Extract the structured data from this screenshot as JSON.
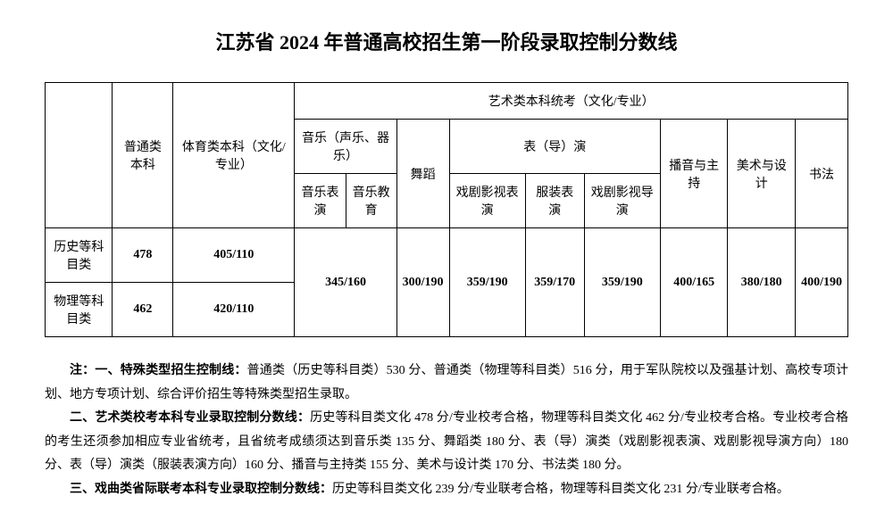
{
  "doc": {
    "title": "江苏省 2024 年普通高校招生第一阶段录取控制分数线",
    "title_fontsize": 22,
    "body_fontsize": 14,
    "notes_fontsize": 14,
    "background_color": "#ffffff",
    "text_color": "#000000",
    "border_color": "#000000"
  },
  "table": {
    "type": "table",
    "headers": {
      "col_category": "",
      "col_general": "普通类本科",
      "col_sports": "体育类本科（文化/专业）",
      "col_art_group": "艺术类本科统考（文化/专业）",
      "col_music_group": "音乐（声乐、器乐）",
      "col_music_perf": "音乐表演",
      "col_music_edu": "音乐教育",
      "col_dance": "舞蹈",
      "col_acting_group": "表（导）演",
      "col_drama_tv_act": "戏剧影视表演",
      "col_fashion_perf": "服装表演",
      "col_drama_tv_dir": "戏剧影视导演",
      "col_broadcast": "播音与主持",
      "col_fine_art": "美术与设计",
      "col_calligraphy": "书法"
    },
    "rows": [
      {
        "category": "历史等科目类",
        "general": "478",
        "sports": "405/110"
      },
      {
        "category": "物理等科目类",
        "general": "462",
        "sports": "420/110"
      }
    ],
    "merged": {
      "music": "345/160",
      "dance": "300/190",
      "drama_tv_act": "359/190",
      "fashion_perf": "359/170",
      "drama_tv_dir": "359/190",
      "broadcast": "400/165",
      "fine_art": "380/180",
      "calligraphy": "400/190"
    }
  },
  "notes": {
    "prefix": "注：",
    "n1_label": "一、特殊类型招生控制线：",
    "n1_text": "普通类（历史等科目类）530 分、普通类（物理等科目类）516 分，用于军队院校以及强基计划、高校专项计划、地方专项计划、综合评价招生等特殊类型招生录取。",
    "n2_label": "二、艺术类校考本科专业录取控制分数线：",
    "n2_text": "历史等科目类文化 478 分/专业校考合格，物理等科目类文化 462 分/专业校考合格。专业校考合格的考生还须参加相应专业省统考，且省统考成绩须达到音乐类 135 分、舞蹈类 180 分、表（导）演类（戏剧影视表演、戏剧影视导演方向）180 分、表（导）演类（服装表演方向）160 分、播音与主持类 155 分、美术与设计类 170 分、书法类 180 分。",
    "n3_label": "三、戏曲类省际联考本科专业录取控制分数线：",
    "n3_text": "历史等科目类文化 239 分/专业联考合格，物理等科目类文化 231 分/专业联考合格。"
  }
}
